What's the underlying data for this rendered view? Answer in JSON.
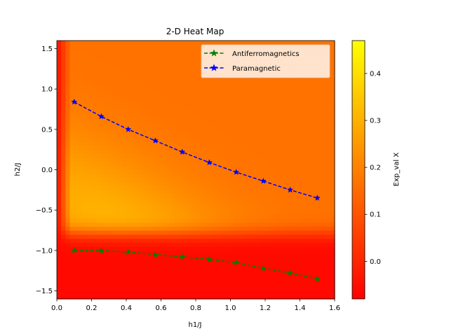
{
  "chart_data": {
    "type": "heatmap",
    "title": "2-D Heat Map",
    "xlabel": "h1/J",
    "ylabel": "h2/J",
    "colorbar_label": "Exp_val X",
    "colormap": "autumn",
    "colormap_low": "#ff0000",
    "colormap_high": "#ffff00",
    "xlim": [
      0.0,
      1.6
    ],
    "ylim": [
      -1.6,
      1.6
    ],
    "clim": [
      -0.08,
      0.47
    ],
    "x_ticks": [
      "0.0",
      "0.2",
      "0.4",
      "0.6",
      "0.8",
      "1.0",
      "1.2",
      "1.4",
      "1.6"
    ],
    "y_ticks": [
      "−1.5",
      "−1.0",
      "−0.5",
      "0.0",
      "0.5",
      "1.0",
      "1.5"
    ],
    "colorbar_ticks": [
      "0.0",
      "0.1",
      "0.2",
      "0.3",
      "0.4"
    ],
    "grid": false,
    "legend_position": "upper right",
    "series": [
      {
        "name": "Antiferromagnetics",
        "color": "#008000",
        "linestyle": "dashed",
        "marker": "star",
        "x": [
          0.1,
          0.256,
          0.411,
          0.567,
          0.722,
          0.878,
          1.033,
          1.189,
          1.344,
          1.5
        ],
        "y": [
          -1.0,
          -1.0,
          -1.02,
          -1.05,
          -1.08,
          -1.11,
          -1.15,
          -1.22,
          -1.28,
          -1.35
        ]
      },
      {
        "name": "Paramagnetic",
        "color": "#0000ff",
        "linestyle": "dashed",
        "marker": "star",
        "x": [
          0.1,
          0.256,
          0.411,
          0.567,
          0.722,
          0.878,
          1.033,
          1.189,
          1.344,
          1.5
        ],
        "y": [
          0.84,
          0.66,
          0.5,
          0.36,
          0.22,
          0.09,
          -0.03,
          -0.14,
          -0.25,
          -0.35
        ]
      }
    ]
  }
}
